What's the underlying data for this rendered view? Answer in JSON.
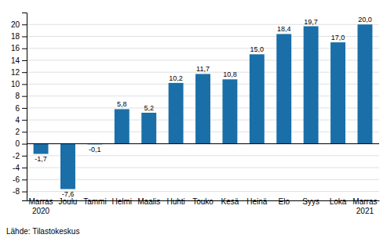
{
  "chart_data": {
    "type": "bar",
    "categories": [
      "Marras\n2020",
      "Joulu",
      "Tammi",
      "Helmi",
      "Maalis",
      "Huhti",
      "Touko",
      "Kesä",
      "Heinä",
      "Elo",
      "Syys",
      "Loka",
      "Marras\n2021"
    ],
    "values": [
      -1.7,
      -7.6,
      -0.1,
      5.8,
      5.2,
      10.2,
      11.7,
      10.8,
      15.0,
      18.4,
      19.7,
      17.0,
      20.0
    ],
    "value_labels": [
      "-1,7",
      "-7,6",
      "-0,1",
      "5,8",
      "5,2",
      "10,2",
      "11,7",
      "10,8",
      "15,0",
      "18,4",
      "19,7",
      "17,0",
      "20,0"
    ],
    "data_labels": true,
    "color": "#1a6fa8",
    "ylim": [
      -9.5,
      22.0
    ],
    "yticks": [
      -8,
      -6,
      -4,
      -2,
      0,
      2,
      4,
      6,
      8,
      10,
      12,
      14,
      16,
      18,
      20
    ],
    "grid": true,
    "annotations": [
      "Lähde: Tilastokeskus"
    ]
  }
}
